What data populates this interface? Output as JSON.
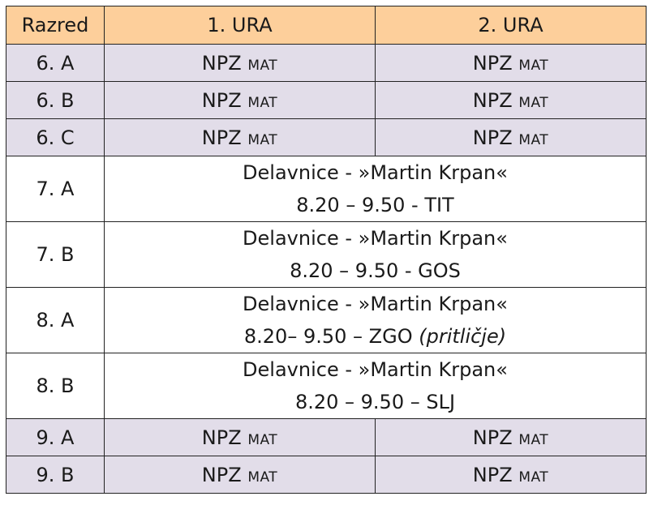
{
  "header": {
    "col_class": "Razred",
    "col_1": "1. URA",
    "col_2": "2. URA"
  },
  "rows": [
    {
      "class": "6. A",
      "h1": {
        "main": "NPZ",
        "sub": "MAT"
      },
      "h2": {
        "main": "NPZ",
        "sub": "MAT"
      }
    },
    {
      "class": "6. B",
      "h1": {
        "main": "NPZ",
        "sub": "MAT"
      },
      "h2": {
        "main": "NPZ",
        "sub": "MAT"
      }
    },
    {
      "class": "6. C",
      "h1": {
        "main": "NPZ",
        "sub": "MAT"
      },
      "h2": {
        "main": "NPZ",
        "sub": "MAT"
      }
    },
    {
      "class": "7. A",
      "workshop": {
        "line1": "Delavnice - »Martin Krpan«",
        "line2": "8.20 – 9.50 - TIT",
        "note": ""
      }
    },
    {
      "class": "7. B",
      "workshop": {
        "line1": "Delavnice - »Martin Krpan«",
        "line2": "8.20 – 9.50 - GOS",
        "note": ""
      }
    },
    {
      "class": "8. A",
      "workshop": {
        "line1": "Delavnice - »Martin Krpan«",
        "line2": "8.20– 9.50 – ZGO",
        "note": "(pritličje)"
      }
    },
    {
      "class": "8. B",
      "workshop": {
        "line1": "Delavnice - »Martin Krpan«",
        "line2": "8.20 – 9.50 – SLJ",
        "note": ""
      }
    },
    {
      "class": "9. A",
      "h1": {
        "main": "NPZ",
        "sub": "MAT"
      },
      "h2": {
        "main": "NPZ",
        "sub": "MAT"
      }
    },
    {
      "class": "9. B",
      "h1": {
        "main": "NPZ",
        "sub": "MAT"
      },
      "h2": {
        "main": "NPZ",
        "sub": "MAT"
      }
    }
  ],
  "colors": {
    "header_bg": "#fdcf9b",
    "npz_row_bg": "#e2dde9",
    "workshop_row_bg": "#ffffff"
  }
}
